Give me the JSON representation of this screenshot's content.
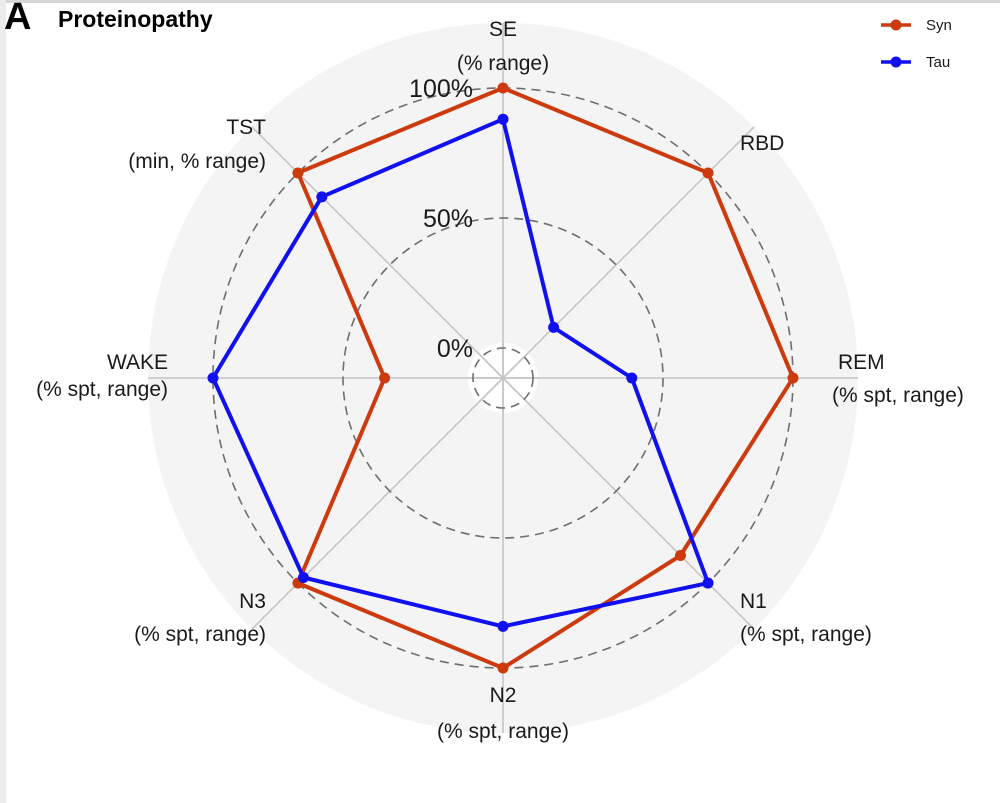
{
  "panel": {
    "letter": "A",
    "title": "Proteinopathy"
  },
  "chart_data": {
    "type": "radar",
    "title": "Proteinopathy",
    "axes": [
      {
        "name": "SE",
        "unit": "(% range)"
      },
      {
        "name": "RBD",
        "unit": ""
      },
      {
        "name": "REM",
        "unit": "(% spt, range)"
      },
      {
        "name": "N1",
        "unit": "(% spt, range)"
      },
      {
        "name": "N2",
        "unit": "(% spt, range)"
      },
      {
        "name": "N3",
        "unit": "(% spt, range)"
      },
      {
        "name": "WAKE",
        "unit": "(% spt, range)"
      },
      {
        "name": "TST",
        "unit": "(min, % range)"
      }
    ],
    "grid_levels": [
      {
        "value": 0,
        "label": "0%"
      },
      {
        "value": 50,
        "label": "50%"
      },
      {
        "value": 100,
        "label": "100%"
      }
    ],
    "range": [
      -25,
      125
    ],
    "series": [
      {
        "name": "Syn",
        "color": "#cc3a0e",
        "values": [
          100,
          100,
          100,
          85,
          100,
          100,
          34,
          100
        ]
      },
      {
        "name": "Tau",
        "color": "#1010f0",
        "values": [
          88,
          16,
          38,
          100,
          84,
          97,
          100,
          87
        ]
      }
    ],
    "legend_position": "top-right"
  }
}
